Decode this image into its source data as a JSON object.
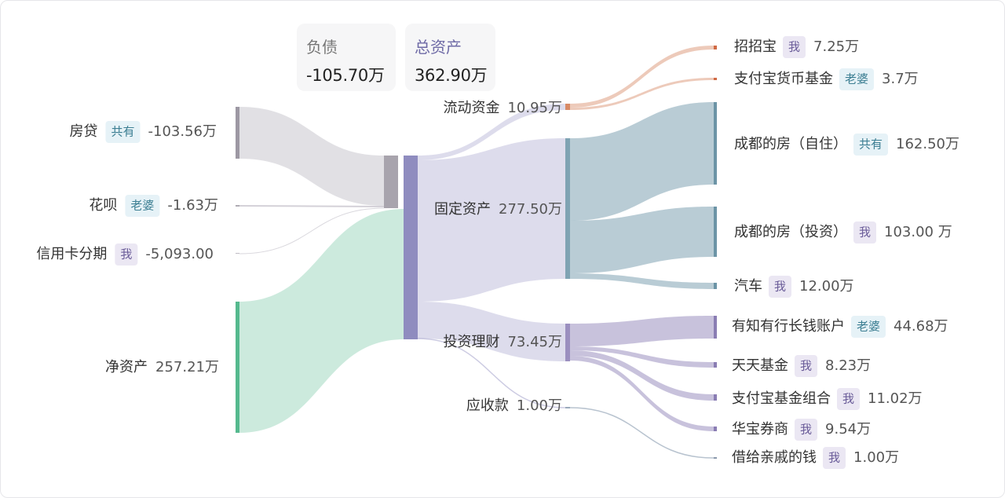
{
  "cards": {
    "liabilities": {
      "title": "负债",
      "value": "-105.70万"
    },
    "assets": {
      "title": "总资产",
      "value": "362.90万"
    }
  },
  "colors": {
    "liab_node": "#a8a4ad",
    "asset_node": "#8f8cbf",
    "fangdai": "#9d98a3",
    "netasset": "#55b98e",
    "liquid": "#d88a66",
    "fixed": "#7fa3b3",
    "invest": "#9b8fbf",
    "receivable": "#9aaabb",
    "tag_shared": {
      "bg": "#e6f2f7",
      "fg": "#3d7f93"
    },
    "tag_wife": {
      "bg": "#e6f2f7",
      "fg": "#3d7f93"
    },
    "tag_me": {
      "bg": "#ebe7f3",
      "fg": "#6a5c99"
    }
  },
  "chart_data": {
    "type": "sankey",
    "unit": "万",
    "nodes": [
      {
        "id": "fangdai",
        "name": "房贷",
        "tag": "共有",
        "value": "-103.56万",
        "amount": 103.56
      },
      {
        "id": "huabei",
        "name": "花呗",
        "tag": "老婆",
        "value": "-1.63万",
        "amount": 1.63
      },
      {
        "id": "xinyongka",
        "name": "信用卡分期",
        "tag": "我",
        "value": "-5,093.00",
        "amount": 0.51
      },
      {
        "id": "jingzichan",
        "name": "净资产",
        "tag": "",
        "value": "257.21万",
        "amount": 257.21
      },
      {
        "id": "liudong",
        "name": "流动资金",
        "tag": "",
        "value": "10.95万",
        "amount": 10.95
      },
      {
        "id": "guding",
        "name": "固定资产",
        "tag": "",
        "value": "277.50万",
        "amount": 277.5
      },
      {
        "id": "touzi",
        "name": "投资理财",
        "tag": "",
        "value": "73.45万",
        "amount": 73.45
      },
      {
        "id": "yingshou",
        "name": "应收款",
        "tag": "",
        "value": "1.00万",
        "amount": 1.0
      },
      {
        "id": "zhaozhaobao",
        "name": "招招宝",
        "tag": "我",
        "value": "7.25万",
        "amount": 7.25
      },
      {
        "id": "zfbhuobi",
        "name": "支付宝货币基金",
        "tag": "老婆",
        "value": "3.7万",
        "amount": 3.7
      },
      {
        "id": "house_self",
        "name": "成都的房（自住）",
        "tag": "共有",
        "value": "162.50万",
        "amount": 162.5
      },
      {
        "id": "house_inv",
        "name": "成都的房（投资）",
        "tag": "我",
        "value": "103.00 万",
        "amount": 103.0
      },
      {
        "id": "car",
        "name": "汽车",
        "tag": "我",
        "value": "12.00万",
        "amount": 12.0
      },
      {
        "id": "youzhi",
        "name": "有知有行长钱账户",
        "tag": "老婆",
        "value": "44.68万",
        "amount": 44.68
      },
      {
        "id": "tiantian",
        "name": "天天基金",
        "tag": "我",
        "value": "8.23万",
        "amount": 8.23
      },
      {
        "id": "zfbzuhe",
        "name": "支付宝基金组合",
        "tag": "我",
        "value": "11.02万",
        "amount": 11.02
      },
      {
        "id": "huabao",
        "name": "华宝券商",
        "tag": "我",
        "value": "9.54万",
        "amount": 9.54
      },
      {
        "id": "jiegei",
        "name": "借给亲戚的钱",
        "tag": "我",
        "value": "1.00万",
        "amount": 1.0
      }
    ]
  }
}
